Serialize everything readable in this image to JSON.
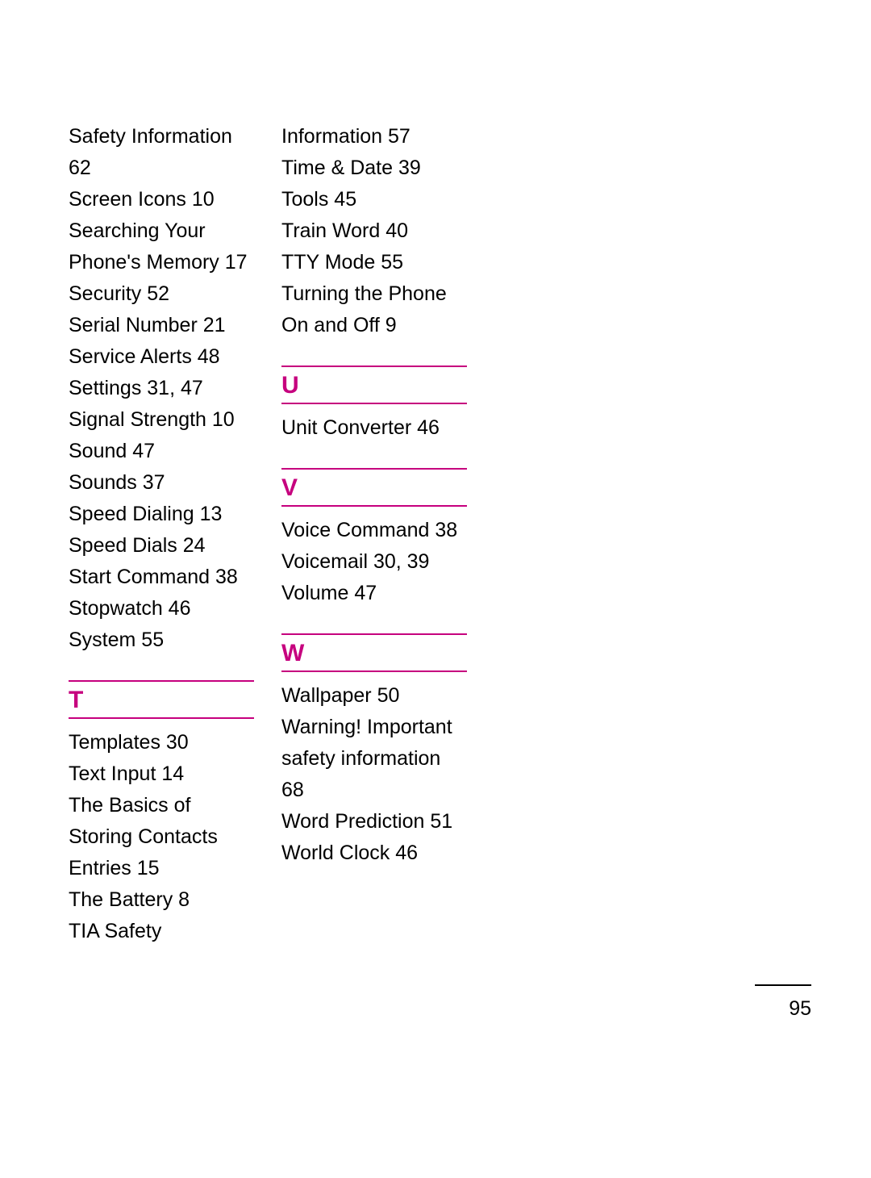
{
  "page_number": "95",
  "colors": {
    "accent": "#c6007e",
    "text": "#000000",
    "background": "#ffffff"
  },
  "typography": {
    "body_fontsize_pt": 19,
    "heading_fontsize_pt": 22,
    "font_family": "Optima / humanist sans-serif"
  },
  "columns": [
    {
      "lead_entries": [
        "Safety Information 62",
        "Screen Icons 10",
        "Searching Your Phone's Memory 17",
        "Security 52",
        "Serial Number 21",
        "Service Alerts 48",
        "Settings 31, 47",
        "Signal Strength 10",
        "Sound 47",
        "Sounds 37",
        "Speed Dialing 13",
        "Speed Dials 24",
        "Start Command 38",
        "Stopwatch 46",
        "System 55"
      ],
      "sections": [
        {
          "letter": "T",
          "entries": [
            "Templates 30",
            "Text Input 14",
            "The Basics of Storing Contacts Entries 15",
            "The Battery 8",
            "TIA Safety"
          ]
        }
      ]
    },
    {
      "lead_entries": [
        "Information 57",
        "Time & Date 39",
        "Tools 45",
        "Train Word 40",
        "TTY Mode 55",
        "Turning the Phone On and Off 9"
      ],
      "sections": [
        {
          "letter": "U",
          "entries": [
            "Unit Converter 46"
          ]
        },
        {
          "letter": "V",
          "entries": [
            "Voice Command 38",
            "Voicemail 30, 39",
            "Volume 47"
          ]
        },
        {
          "letter": "W",
          "entries": [
            "Wallpaper 50",
            "Warning! Important safety information 68",
            "Word Prediction 51",
            "World Clock 46"
          ]
        }
      ]
    }
  ]
}
